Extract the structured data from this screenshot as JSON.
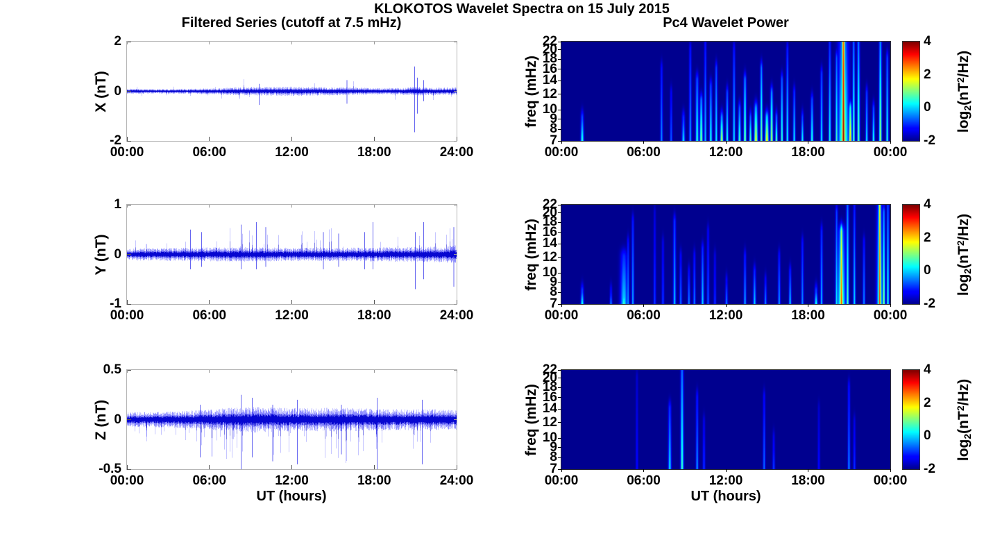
{
  "figure": {
    "title": "KLOKOTOS Wavelet Spectra on 15 July 2015",
    "left_title": "Filtered Series (cutoff at 7.5 mHz)",
    "right_title": "Pc4 Wavelet Power",
    "xlabel": "UT (hours)",
    "background_color": "#ffffff",
    "line_color": "#0000dd",
    "heatmap_min_color": "#00008f",
    "colorbar": {
      "tick_values": [
        4,
        2,
        0,
        -2
      ],
      "tick_labels": [
        "4",
        "2",
        "0",
        "-2"
      ],
      "range": [
        -2,
        4
      ],
      "label_plain": "log2(nT^2/Hz)",
      "label": {
        "pre": "log",
        "sub": "2",
        "mid": "(nT",
        "sup": "2",
        "post": "/Hz)"
      }
    }
  },
  "chart_data": [
    {
      "id": "x-filtered-series",
      "type": "line",
      "title": "Filtered Series (cutoff at 7.5 mHz)",
      "ylabel": "X (nT)",
      "ylim": [
        -2,
        2
      ],
      "yticks": [
        2,
        0,
        -2
      ],
      "ytick_labels": [
        "2",
        "0",
        "-2"
      ],
      "xlim_hours": [
        0,
        24
      ],
      "xticks": [
        0,
        6,
        12,
        18,
        24
      ],
      "xticklabels": [
        "00:00",
        "06:00",
        "12:00",
        "18:00",
        "24:00"
      ],
      "seed": 11,
      "noise_envelope": [
        [
          0,
          0.08
        ],
        [
          2,
          0.07
        ],
        [
          5,
          0.08
        ],
        [
          7,
          0.1
        ],
        [
          8,
          0.12
        ],
        [
          10,
          0.13
        ],
        [
          12,
          0.14
        ],
        [
          14,
          0.13
        ],
        [
          16,
          0.12
        ],
        [
          18,
          0.1
        ],
        [
          20,
          0.1
        ],
        [
          21,
          0.14
        ],
        [
          22,
          0.11
        ],
        [
          24,
          0.12
        ]
      ],
      "random_spikes": {
        "prob": 0.02,
        "scale": [
          1.5,
          3.2
        ],
        "bias": "both"
      },
      "spikes": [
        {
          "t": 9.6,
          "max": 0.3,
          "min": -0.55
        },
        {
          "t": 16.0,
          "max": 0.45,
          "min": -0.5
        },
        {
          "t": 20.95,
          "max": 1.0,
          "min": -1.65
        },
        {
          "t": 21.15,
          "max": 0.55,
          "min": -0.9
        },
        {
          "t": 21.6,
          "max": 0.45,
          "min": -0.4
        }
      ]
    },
    {
      "id": "y-filtered-series",
      "type": "line",
      "ylabel": "Y (nT)",
      "ylim": [
        -1,
        1
      ],
      "yticks": [
        1,
        0,
        -1
      ],
      "ytick_labels": [
        "1",
        "0",
        "-1"
      ],
      "xlim_hours": [
        0,
        24
      ],
      "xticks": [
        0,
        6,
        12,
        18,
        24
      ],
      "xticklabels": [
        "00:00",
        "06:00",
        "12:00",
        "18:00",
        "24:00"
      ],
      "seed": 22,
      "noise_envelope": [
        [
          0,
          0.09
        ],
        [
          4,
          0.1
        ],
        [
          8,
          0.11
        ],
        [
          12,
          0.1
        ],
        [
          16,
          0.1
        ],
        [
          20,
          0.11
        ],
        [
          23,
          0.12
        ],
        [
          24,
          0.14
        ]
      ],
      "random_spikes": {
        "prob": 0.035,
        "scale": [
          2.0,
          4.5
        ],
        "bias": "up"
      },
      "spikes": [
        {
          "t": 4.6,
          "max": 0.5,
          "min": -0.3
        },
        {
          "t": 5.4,
          "max": 0.45,
          "min": -0.25
        },
        {
          "t": 8.3,
          "max": 0.6,
          "min": -0.3
        },
        {
          "t": 9.4,
          "max": 0.65,
          "min": -0.3
        },
        {
          "t": 10.1,
          "max": 0.55,
          "min": -0.25
        },
        {
          "t": 14.3,
          "max": 0.45,
          "min": -0.3
        },
        {
          "t": 15.4,
          "max": 0.42,
          "min": -0.25
        },
        {
          "t": 17.3,
          "max": 0.45,
          "min": -0.3
        },
        {
          "t": 17.9,
          "max": 0.65,
          "min": -0.3
        },
        {
          "t": 21.0,
          "max": 0.45,
          "min": -0.7
        },
        {
          "t": 21.6,
          "max": 0.65,
          "min": -0.5
        },
        {
          "t": 23.8,
          "max": 0.55,
          "min": -0.65
        }
      ]
    },
    {
      "id": "z-filtered-series",
      "type": "line",
      "ylabel": "Z (nT)",
      "ylim": [
        -0.5,
        0.5
      ],
      "yticks": [
        0.5,
        0,
        -0.5
      ],
      "ytick_labels": [
        "0.5",
        "0",
        "-0.5"
      ],
      "xlabel": "UT (hours)",
      "xlim_hours": [
        0,
        24
      ],
      "xticks": [
        0,
        6,
        12,
        18,
        24
      ],
      "xticklabels": [
        "00:00",
        "06:00",
        "12:00",
        "18:00",
        "24:00"
      ],
      "seed": 33,
      "noise_envelope": [
        [
          0,
          0.055
        ],
        [
          3,
          0.06
        ],
        [
          5,
          0.07
        ],
        [
          7,
          0.085
        ],
        [
          9,
          0.095
        ],
        [
          11,
          0.09
        ],
        [
          13,
          0.085
        ],
        [
          15,
          0.09
        ],
        [
          17,
          0.085
        ],
        [
          19,
          0.08
        ],
        [
          21,
          0.08
        ],
        [
          24,
          0.075
        ]
      ],
      "random_spikes": {
        "prob": 0.05,
        "scale": [
          2.0,
          4.0
        ],
        "bias": "down"
      },
      "spikes": [
        {
          "t": 5.3,
          "max": 0.15,
          "min": -0.38
        },
        {
          "t": 8.3,
          "max": 0.25,
          "min": -0.5
        },
        {
          "t": 9.1,
          "max": 0.22,
          "min": -0.38
        },
        {
          "t": 10.6,
          "max": 0.15,
          "min": -0.42
        },
        {
          "t": 12.4,
          "max": 0.2,
          "min": -0.45
        },
        {
          "t": 15.6,
          "max": 0.15,
          "min": -0.35
        },
        {
          "t": 18.2,
          "max": 0.22,
          "min": -0.5
        },
        {
          "t": 21.5,
          "max": 0.2,
          "min": -0.45
        }
      ]
    },
    {
      "id": "x-wavelet-power",
      "type": "heatmap",
      "title": "Pc4 Wavelet Power",
      "ylabel": "freq (mHz)",
      "freq_range_mhz": [
        7,
        22
      ],
      "freq_scale": "log",
      "freq_ticks": [
        22,
        20,
        18,
        16,
        14,
        12,
        10,
        9,
        8,
        7
      ],
      "freq_tick_labels": [
        "22",
        "20",
        "18",
        "16",
        "14",
        "12",
        "10",
        "9",
        "8",
        "7"
      ],
      "value_range_log2": [
        -2,
        4
      ],
      "background_value": -2,
      "xlim_hours": [
        0,
        24
      ],
      "xticks": [
        0,
        6,
        12,
        18,
        24
      ],
      "xticklabels": [
        "00:00",
        "06:00",
        "12:00",
        "18:00",
        "00:00"
      ],
      "streak_fields": [
        "t_hours",
        "peak_log2_power",
        "f_top_mhz",
        "width_hours",
        "top_fade"
      ],
      "streaks": [
        [
          1.5,
          0.6,
          9,
          0.1,
          0.5
        ],
        [
          7.3,
          -0.3,
          16,
          0.08,
          0.5
        ],
        [
          8.0,
          -0.6,
          12,
          0.08,
          0.5
        ],
        [
          8.9,
          0.2,
          9,
          0.1,
          0.5
        ],
        [
          9.4,
          -0.2,
          20,
          0.08,
          0.5
        ],
        [
          9.9,
          0.6,
          14,
          0.1,
          0.5
        ],
        [
          10.2,
          1.2,
          11,
          0.1,
          0.5
        ],
        [
          10.5,
          0.0,
          22,
          0.08,
          0.6
        ],
        [
          10.9,
          0.5,
          13,
          0.09,
          0.5
        ],
        [
          11.3,
          0.4,
          16,
          0.08,
          0.5
        ],
        [
          11.7,
          1.6,
          9,
          0.1,
          0.5
        ],
        [
          12.1,
          0.6,
          12,
          0.08,
          0.5
        ],
        [
          12.6,
          0.3,
          20,
          0.08,
          0.6
        ],
        [
          13.0,
          0.8,
          10,
          0.09,
          0.5
        ],
        [
          13.4,
          1.2,
          14,
          0.09,
          0.5
        ],
        [
          13.8,
          1.0,
          9,
          0.08,
          0.5
        ],
        [
          14.2,
          1.8,
          10,
          0.12,
          0.5
        ],
        [
          14.6,
          1.2,
          16,
          0.08,
          0.5
        ],
        [
          15.0,
          2.0,
          9,
          0.12,
          0.45
        ],
        [
          15.35,
          1.5,
          12,
          0.09,
          0.5
        ],
        [
          15.7,
          1.0,
          9,
          0.08,
          0.5
        ],
        [
          16.1,
          0.8,
          14,
          0.08,
          0.5
        ],
        [
          16.5,
          0.4,
          20,
          0.08,
          0.6
        ],
        [
          17.0,
          0.3,
          12,
          0.08,
          0.5
        ],
        [
          17.6,
          0.5,
          9,
          0.08,
          0.5
        ],
        [
          18.3,
          0.6,
          11,
          0.09,
          0.5
        ],
        [
          19.0,
          0.3,
          15,
          0.08,
          0.5
        ],
        [
          19.6,
          0.5,
          22,
          0.08,
          0.6
        ],
        [
          20.1,
          0.8,
          18,
          0.08,
          0.5
        ],
        [
          20.6,
          4.0,
          22,
          0.1,
          0.2
        ],
        [
          20.6,
          1.2,
          22,
          0.35,
          0.5
        ],
        [
          21.1,
          2.2,
          10,
          0.1,
          0.4
        ],
        [
          21.35,
          0.9,
          22,
          0.08,
          0.5
        ],
        [
          21.7,
          1.0,
          22,
          0.09,
          0.5
        ],
        [
          22.3,
          0.3,
          12,
          0.08,
          0.5
        ],
        [
          22.8,
          0.6,
          10,
          0.08,
          0.5
        ],
        [
          23.3,
          1.3,
          22,
          0.09,
          0.5
        ],
        [
          23.8,
          0.5,
          18,
          0.08,
          0.5
        ]
      ]
    },
    {
      "id": "y-wavelet-power",
      "type": "heatmap",
      "ylabel": "freq (mHz)",
      "freq_range_mhz": [
        7,
        22
      ],
      "freq_scale": "log",
      "freq_ticks": [
        22,
        20,
        18,
        16,
        14,
        12,
        10,
        9,
        8,
        7
      ],
      "freq_tick_labels": [
        "22",
        "20",
        "18",
        "16",
        "14",
        "12",
        "10",
        "9",
        "8",
        "7"
      ],
      "value_range_log2": [
        -2,
        4
      ],
      "background_value": -2,
      "xlim_hours": [
        0,
        24
      ],
      "xticks": [
        0,
        6,
        12,
        18,
        24
      ],
      "xticklabels": [
        "00:00",
        "06:00",
        "12:00",
        "18:00",
        "00:00"
      ],
      "streak_fields": [
        "t_hours",
        "peak_log2_power",
        "f_top_mhz",
        "width_hours",
        "top_fade"
      ],
      "streaks": [
        [
          1.5,
          0.5,
          8,
          0.1,
          0.5
        ],
        [
          3.6,
          -0.3,
          8,
          0.08,
          0.5
        ],
        [
          4.55,
          0.8,
          8,
          0.12,
          0.5
        ],
        [
          4.55,
          0.1,
          12,
          0.25,
          0.5
        ],
        [
          4.85,
          -0.2,
          14,
          0.08,
          0.5
        ],
        [
          5.2,
          -0.1,
          18,
          0.08,
          0.5
        ],
        [
          6.8,
          -0.8,
          20,
          0.08,
          0.6
        ],
        [
          7.4,
          -0.8,
          14,
          0.08,
          0.5
        ],
        [
          8.25,
          0.0,
          18,
          0.09,
          0.45
        ],
        [
          8.7,
          -0.5,
          12,
          0.08,
          0.5
        ],
        [
          9.3,
          -0.3,
          10,
          0.08,
          0.5
        ],
        [
          9.7,
          -0.4,
          12,
          0.08,
          0.5
        ],
        [
          10.3,
          0.1,
          13,
          0.09,
          0.5
        ],
        [
          10.7,
          -0.6,
          16,
          0.08,
          0.5
        ],
        [
          11.2,
          -0.9,
          12,
          0.08,
          0.5
        ],
        [
          12.05,
          -0.4,
          9,
          0.08,
          0.5
        ],
        [
          13.4,
          -0.1,
          12,
          0.08,
          0.5
        ],
        [
          14.1,
          0.1,
          10,
          0.09,
          0.5
        ],
        [
          14.9,
          -0.3,
          9,
          0.08,
          0.5
        ],
        [
          15.9,
          -0.2,
          12,
          0.08,
          0.5
        ],
        [
          16.7,
          0.1,
          10,
          0.08,
          0.5
        ],
        [
          17.6,
          -0.3,
          14,
          0.08,
          0.5
        ],
        [
          18.6,
          0.5,
          8,
          0.1,
          0.5
        ],
        [
          19.0,
          0.0,
          16,
          0.08,
          0.5
        ],
        [
          20.1,
          0.4,
          20,
          0.08,
          0.5
        ],
        [
          20.45,
          3.0,
          16,
          0.1,
          0.35
        ],
        [
          20.45,
          0.9,
          16,
          0.28,
          0.5
        ],
        [
          20.9,
          0.9,
          22,
          0.09,
          0.5
        ],
        [
          21.4,
          0.2,
          22,
          0.08,
          0.6
        ],
        [
          22.1,
          -0.3,
          14,
          0.08,
          0.5
        ],
        [
          23.25,
          3.2,
          22,
          0.08,
          0.25
        ],
        [
          23.25,
          0.8,
          22,
          0.2,
          0.5
        ],
        [
          23.55,
          1.2,
          20,
          0.09,
          0.5
        ],
        [
          23.85,
          0.6,
          22,
          0.08,
          0.5
        ]
      ]
    },
    {
      "id": "z-wavelet-power",
      "type": "heatmap",
      "ylabel": "freq (mHz)",
      "xlabel": "UT (hours)",
      "freq_range_mhz": [
        7,
        22
      ],
      "freq_scale": "log",
      "freq_ticks": [
        22,
        20,
        18,
        16,
        14,
        12,
        10,
        9,
        8,
        7
      ],
      "freq_tick_labels": [
        "22",
        "20",
        "18",
        "16",
        "14",
        "12",
        "10",
        "9",
        "8",
        "7"
      ],
      "value_range_log2": [
        -2,
        4
      ],
      "background_value": -2,
      "xlim_hours": [
        0,
        24
      ],
      "xticks": [
        0,
        6,
        12,
        18,
        24
      ],
      "xticklabels": [
        "00:00",
        "06:00",
        "12:00",
        "18:00",
        "00:00"
      ],
      "streak_fields": [
        "t_hours",
        "peak_log2_power",
        "f_top_mhz",
        "width_hours",
        "top_fade"
      ],
      "streaks": [
        [
          5.5,
          -1.2,
          20,
          0.08,
          0.5
        ],
        [
          7.9,
          0.2,
          14,
          0.1,
          0.5
        ],
        [
          8.8,
          0.7,
          22,
          0.1,
          0.45
        ],
        [
          9.9,
          -0.2,
          16,
          0.08,
          0.5
        ],
        [
          10.4,
          -0.8,
          12,
          0.08,
          0.5
        ],
        [
          14.8,
          -0.5,
          16,
          0.08,
          0.5
        ],
        [
          15.5,
          -0.8,
          10,
          0.08,
          0.5
        ],
        [
          18.8,
          -1.2,
          14,
          0.08,
          0.5
        ],
        [
          21.0,
          -0.3,
          18,
          0.08,
          0.5
        ],
        [
          21.4,
          -0.9,
          12,
          0.08,
          0.5
        ]
      ]
    }
  ]
}
